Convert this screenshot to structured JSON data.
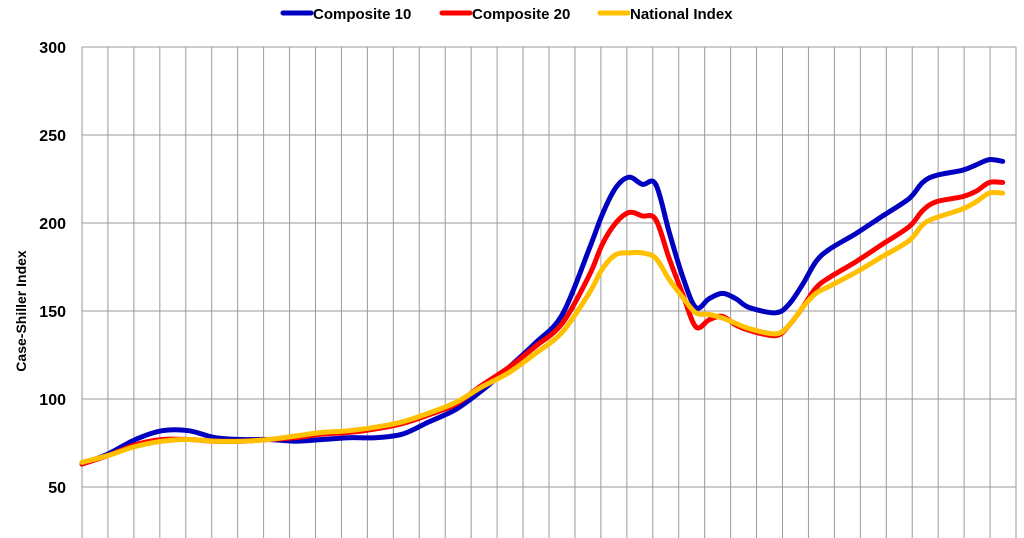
{
  "chart_data": {
    "type": "line",
    "ylabel": "Case-Shiller Index",
    "ylim": [
      50,
      300
    ],
    "y_ticks": [
      50,
      100,
      150,
      200,
      250,
      300
    ],
    "xlim": [
      1987,
      2022
    ],
    "vertical_grid_count": 36,
    "grid": true,
    "legend_position": "top-center",
    "series": [
      {
        "name": "Composite 10",
        "color": "#0000C0",
        "points": [
          [
            1987,
            63
          ],
          [
            1988,
            69
          ],
          [
            1989,
            77
          ],
          [
            1990,
            82
          ],
          [
            1991,
            82
          ],
          [
            1992,
            78
          ],
          [
            1993,
            77
          ],
          [
            1994,
            77
          ],
          [
            1995,
            76
          ],
          [
            1996,
            77
          ],
          [
            1997,
            78
          ],
          [
            1998,
            78
          ],
          [
            1999,
            80
          ],
          [
            2000,
            87
          ],
          [
            2001,
            94
          ],
          [
            2002,
            105
          ],
          [
            2003,
            118
          ],
          [
            2004,
            132
          ],
          [
            2005,
            148
          ],
          [
            2006,
            185
          ],
          [
            2006.5,
            205
          ],
          [
            2007,
            220
          ],
          [
            2007.5,
            226
          ],
          [
            2008,
            222
          ],
          [
            2008.5,
            222
          ],
          [
            2009,
            195
          ],
          [
            2009.5,
            170
          ],
          [
            2010,
            152
          ],
          [
            2010.5,
            157
          ],
          [
            2011,
            160
          ],
          [
            2011.5,
            157
          ],
          [
            2012,
            152
          ],
          [
            2013,
            149
          ],
          [
            2013.5,
            154
          ],
          [
            2014,
            165
          ],
          [
            2014.5,
            178
          ],
          [
            2015,
            185
          ],
          [
            2016,
            194
          ],
          [
            2017,
            204
          ],
          [
            2018,
            214
          ],
          [
            2018.5,
            223
          ],
          [
            2019,
            227
          ],
          [
            2020,
            230
          ],
          [
            2020.5,
            233
          ],
          [
            2021,
            236
          ],
          [
            2021.5,
            235
          ]
        ]
      },
      {
        "name": "Composite 20",
        "color": "#FF0000",
        "points": [
          [
            1987,
            63
          ],
          [
            1988,
            68
          ],
          [
            1989,
            74
          ],
          [
            1990,
            77
          ],
          [
            1991,
            77
          ],
          [
            1992,
            76
          ],
          [
            1993,
            76
          ],
          [
            1994,
            77
          ],
          [
            1995,
            78
          ],
          [
            1996,
            80
          ],
          [
            1997,
            81
          ],
          [
            1998,
            83
          ],
          [
            1999,
            86
          ],
          [
            2000,
            91
          ],
          [
            2001,
            97
          ],
          [
            2002,
            108
          ],
          [
            2003,
            118
          ],
          [
            2004,
            130
          ],
          [
            2005,
            143
          ],
          [
            2006,
            170
          ],
          [
            2006.5,
            188
          ],
          [
            2007,
            200
          ],
          [
            2007.5,
            206
          ],
          [
            2008,
            204
          ],
          [
            2008.5,
            202
          ],
          [
            2009,
            180
          ],
          [
            2009.5,
            160
          ],
          [
            2010,
            141
          ],
          [
            2010.5,
            145
          ],
          [
            2011,
            147
          ],
          [
            2011.5,
            142
          ],
          [
            2012,
            139
          ],
          [
            2013,
            136
          ],
          [
            2013.5,
            142
          ],
          [
            2014,
            152
          ],
          [
            2014.5,
            163
          ],
          [
            2015,
            169
          ],
          [
            2016,
            178
          ],
          [
            2017,
            188
          ],
          [
            2018,
            198
          ],
          [
            2018.5,
            207
          ],
          [
            2019,
            212
          ],
          [
            2020,
            215
          ],
          [
            2020.5,
            218
          ],
          [
            2021,
            223
          ],
          [
            2021.5,
            223
          ]
        ]
      },
      {
        "name": "National Index",
        "color": "#FFC000",
        "points": [
          [
            1987,
            64
          ],
          [
            1988,
            68
          ],
          [
            1989,
            73
          ],
          [
            1990,
            76
          ],
          [
            1991,
            77
          ],
          [
            1992,
            76
          ],
          [
            1993,
            76
          ],
          [
            1994,
            77
          ],
          [
            1995,
            79
          ],
          [
            1996,
            81
          ],
          [
            1997,
            82
          ],
          [
            1998,
            84
          ],
          [
            1999,
            87
          ],
          [
            2000,
            92
          ],
          [
            2001,
            98
          ],
          [
            2002,
            107
          ],
          [
            2003,
            115
          ],
          [
            2004,
            126
          ],
          [
            2005,
            138
          ],
          [
            2006,
            160
          ],
          [
            2006.5,
            174
          ],
          [
            2007,
            182
          ],
          [
            2007.5,
            183
          ],
          [
            2008,
            183
          ],
          [
            2008.5,
            180
          ],
          [
            2009,
            168
          ],
          [
            2009.5,
            158
          ],
          [
            2010,
            149
          ],
          [
            2010.5,
            148
          ],
          [
            2011,
            146
          ],
          [
            2011.5,
            143
          ],
          [
            2012,
            140
          ],
          [
            2013,
            137
          ],
          [
            2013.5,
            142
          ],
          [
            2014,
            152
          ],
          [
            2014.5,
            160
          ],
          [
            2015,
            164
          ],
          [
            2016,
            172
          ],
          [
            2017,
            181
          ],
          [
            2018,
            190
          ],
          [
            2018.5,
            199
          ],
          [
            2019,
            203
          ],
          [
            2020,
            208
          ],
          [
            2020.5,
            212
          ],
          [
            2021,
            217
          ],
          [
            2021.5,
            217
          ]
        ]
      }
    ]
  }
}
